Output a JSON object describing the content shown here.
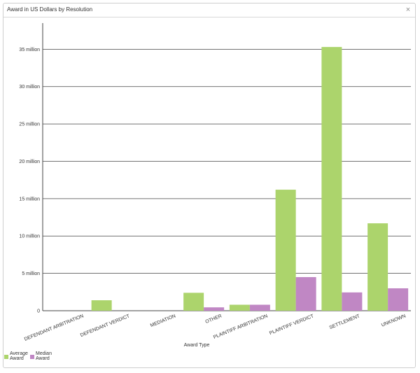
{
  "window": {
    "title": "Award in US Dollars by Resolution",
    "close_icon": "×"
  },
  "colors": {
    "average": "#acd46c",
    "median": "#c087c4",
    "gridline": "#444444",
    "axis": "#444444",
    "text": "#333333"
  },
  "chart_data": {
    "type": "bar",
    "title": "",
    "xlabel": "Award Type",
    "ylabel": "",
    "categories": [
      "DEFENDANT ARBITRATION",
      "DEFENDANT VERDICT",
      "MEDIATION",
      "OTHER",
      "PLAINTIFF ARBITRATION",
      "PLAINTIFF VERDICT",
      "SETTLEMENT",
      "UNKNOWN"
    ],
    "series": [
      {
        "name": "Average Award",
        "values": [
          0,
          1.4,
          0,
          2.4,
          0.8,
          16.2,
          35.3,
          11.7
        ]
      },
      {
        "name": "Median Award",
        "values": [
          0,
          0,
          0,
          0.45,
          0.8,
          4.5,
          2.45,
          3.0
        ]
      }
    ],
    "value_unit": "million",
    "ylim": [
      0,
      38.5
    ],
    "yticks": [
      0,
      5,
      10,
      15,
      20,
      25,
      30,
      35
    ],
    "ytick_labels": [
      "0",
      "5 million",
      "10 million",
      "15 million",
      "20 million",
      "25 million",
      "30 million",
      "35 million"
    ],
    "grid": true,
    "legend_position": "bottom-left"
  },
  "legend": {
    "items": [
      {
        "line1": "Average",
        "line2": "Award"
      },
      {
        "line1": "Median",
        "line2": "Award"
      }
    ]
  }
}
